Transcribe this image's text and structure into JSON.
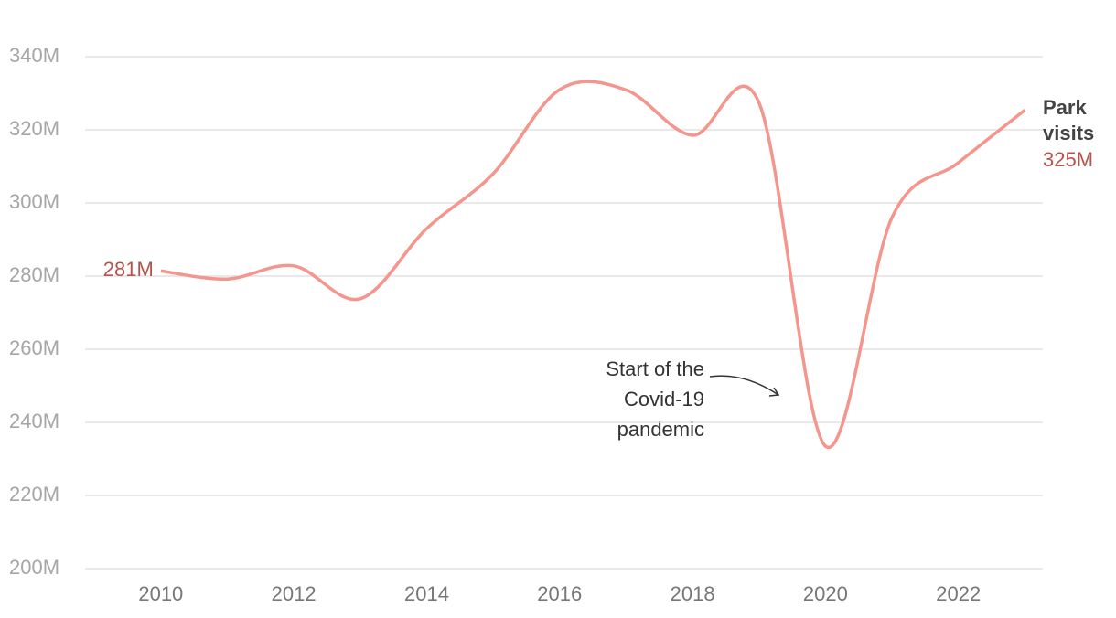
{
  "chart_data": {
    "type": "line",
    "x": [
      2010,
      2011,
      2012,
      2013,
      2014,
      2015,
      2016,
      2017,
      2018,
      2019,
      2020,
      2021,
      2022,
      2023
    ],
    "series": [
      {
        "name": "Park visits",
        "color": "#f4968d",
        "values": [
          281.4,
          279.2,
          282.8,
          273.8,
          293,
          308,
          331,
          330.9,
          318.5,
          327.4,
          233.5,
          296,
          311,
          325.4
        ],
        "value_labels": [
          "281M",
          null,
          null,
          null,
          null,
          null,
          null,
          null,
          null,
          null,
          null,
          null,
          null,
          "325M"
        ]
      }
    ],
    "xlim": [
      2008.86,
      2023.27
    ],
    "xticks": [
      2010,
      2012,
      2014,
      2016,
      2018,
      2020,
      2022
    ],
    "ylim": [
      200,
      340
    ],
    "yticks": [
      {
        "value": 200,
        "label": "200M"
      },
      {
        "value": 220,
        "label": "220M"
      },
      {
        "value": 240,
        "label": "240M"
      },
      {
        "value": 260,
        "label": "260M"
      },
      {
        "value": 280,
        "label": "280M"
      },
      {
        "value": 300,
        "label": "300M"
      },
      {
        "value": 320,
        "label": "320M"
      },
      {
        "value": 340,
        "label": "340M"
      }
    ],
    "grid": true,
    "annotation": [
      "Start of the",
      "Covid-19",
      "pandemic"
    ]
  }
}
